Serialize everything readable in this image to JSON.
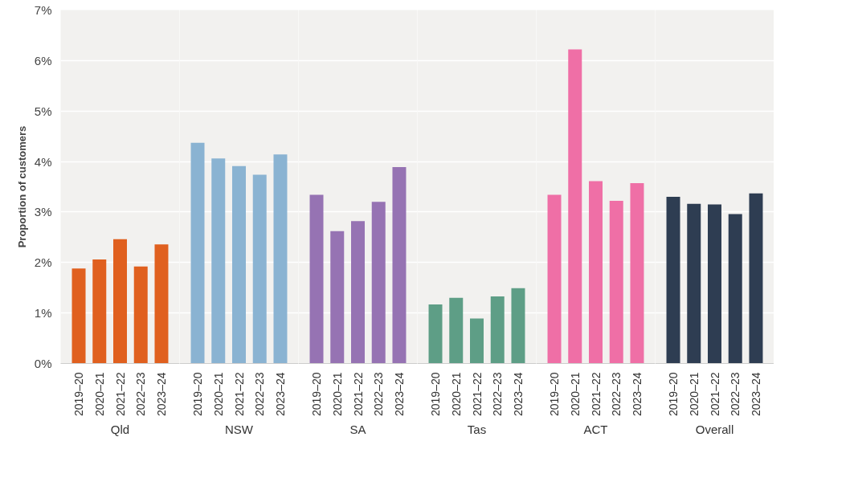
{
  "chart_data": [
    {
      "type": "bar",
      "ylabel": "Proportion of customers",
      "xlabel": "Qld",
      "categories": [
        "2019–20",
        "2020–21",
        "2021–22",
        "2022–23",
        "2023–24"
      ],
      "series": [
        {
          "color": "#e0601f",
          "values": [
            1.88,
            2.06,
            2.46,
            1.92,
            2.36
          ]
        }
      ],
      "ylim": [
        0,
        7
      ],
      "yticks": [
        {
          "value": 0,
          "label": "0%"
        },
        {
          "value": 1,
          "label": "1%"
        },
        {
          "value": 2,
          "label": "2%"
        },
        {
          "value": 3,
          "label": "3%"
        },
        {
          "value": 4,
          "label": "4%"
        },
        {
          "value": 5,
          "label": "5%"
        },
        {
          "value": 6,
          "label": "6%"
        },
        {
          "value": 7,
          "label": "7%"
        }
      ],
      "grid": "y"
    },
    {
      "type": "bar",
      "xlabel": "NSW",
      "categories": [
        "2019–20",
        "2020–21",
        "2021–22",
        "2022–23",
        "2023–24"
      ],
      "series": [
        {
          "color": "#8ab3d2",
          "values": [
            4.37,
            4.06,
            3.91,
            3.74,
            4.14
          ]
        }
      ],
      "ylim": [
        0,
        7
      ],
      "yticks": [
        0,
        1,
        2,
        3,
        4,
        5,
        6,
        7
      ],
      "grid": "y",
      "tick_labels": "x"
    },
    {
      "type": "bar",
      "xlabel": "SA",
      "categories": [
        "2019–20",
        "2020–21",
        "2021–22",
        "2022–23",
        "2023–24"
      ],
      "series": [
        {
          "color": "#9673b3",
          "values": [
            3.34,
            2.62,
            2.82,
            3.2,
            3.89
          ]
        }
      ],
      "ylim": [
        0,
        7
      ],
      "yticks": [
        0,
        1,
        2,
        3,
        4,
        5,
        6,
        7
      ],
      "grid": "y",
      "tick_labels": "x"
    },
    {
      "type": "bar",
      "xlabel": "Tas",
      "categories": [
        "2019–20",
        "2020–21",
        "2021–22",
        "2022–23",
        "2023–24"
      ],
      "series": [
        {
          "color": "#5e9e86",
          "values": [
            1.17,
            1.3,
            0.89,
            1.33,
            1.49
          ]
        }
      ],
      "ylim": [
        0,
        7
      ],
      "yticks": [
        0,
        1,
        2,
        3,
        4,
        5,
        6,
        7
      ],
      "grid": "y",
      "tick_labels": "x"
    },
    {
      "type": "bar",
      "xlabel": "ACT",
      "categories": [
        "2019–20",
        "2020–21",
        "2021–22",
        "2022–23",
        "2023–24"
      ],
      "series": [
        {
          "color": "#ef6fa6",
          "values": [
            3.34,
            6.22,
            3.61,
            3.22,
            3.57
          ]
        }
      ],
      "ylim": [
        0,
        7
      ],
      "yticks": [
        0,
        1,
        2,
        3,
        4,
        5,
        6,
        7
      ],
      "grid": "y",
      "tick_labels": "x"
    },
    {
      "type": "bar",
      "xlabel": "Overall",
      "categories": [
        "2019–20",
        "2020–21",
        "2021–22",
        "2022–23",
        "2023–24"
      ],
      "series": [
        {
          "color": "#2e3d52",
          "values": [
            3.3,
            3.16,
            3.15,
            2.96,
            3.37
          ]
        }
      ],
      "ylim": [
        0,
        7
      ],
      "yticks": [
        0,
        1,
        2,
        3,
        4,
        5,
        6,
        7
      ],
      "grid": "y",
      "tick_labels": "x"
    }
  ]
}
